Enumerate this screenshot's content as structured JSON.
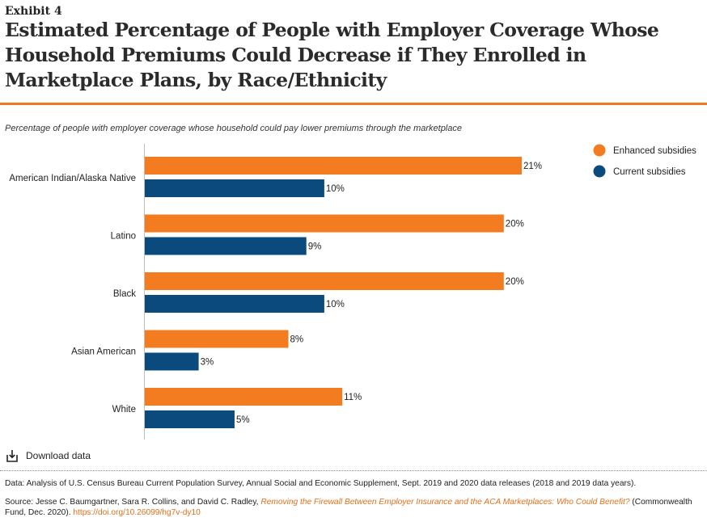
{
  "exhibit_label": "Exhibit 4",
  "title": "Estimated Percentage of People with Employer Coverage Whose Household Premiums Could Decrease if They Enrolled in Marketplace Plans, by Race/Ethnicity",
  "subtitle": "Percentage of people with employer coverage whose household could pay lower premiums through the marketplace",
  "colors": {
    "enhanced": "#f37c20",
    "current": "#0b4a7c",
    "accent_rule": "#ef7a22"
  },
  "chart_data": {
    "type": "bar",
    "orientation": "horizontal",
    "title": "Estimated Percentage of People with Employer Coverage Whose Household Premiums Could Decrease if They Enrolled in Marketplace Plans, by Race/Ethnicity",
    "xlabel": "",
    "ylabel": "",
    "xlim": [
      0,
      21
    ],
    "grid": false,
    "legend_position": "top-right",
    "categories": [
      "American Indian/Alaska Native",
      "Latino",
      "Black",
      "Asian American",
      "White"
    ],
    "series": [
      {
        "name": "Enhanced subsidies",
        "values": [
          21,
          20,
          20,
          8,
          11
        ],
        "labels": [
          "21%",
          "20%",
          "20%",
          "8%",
          "11%"
        ]
      },
      {
        "name": "Current subsidies",
        "values": [
          10,
          9,
          10,
          3,
          5
        ],
        "labels": [
          "10%",
          "9%",
          "10%",
          "3%",
          "5%"
        ]
      }
    ]
  },
  "download_label": "Download data",
  "notes": {
    "data_text": "Data: Analysis of U.S. Census Bureau Current Population Survey, Annual Social and Economic Supplement, Sept. 2019 and 2020 data releases (2018 and 2019 data years).",
    "source_prefix": "Source: Jesse C. Baumgartner, Sara R. Collins, and David C. Radley, ",
    "source_title": "Removing the Firewall Between Employer Insurance and the ACA Marketplaces: Who Could Benefit?",
    "source_suffix": " (Commonwealth Fund, Dec. 2020). ",
    "doi": "https://doi.org/10.26099/hg7v-dy10"
  }
}
